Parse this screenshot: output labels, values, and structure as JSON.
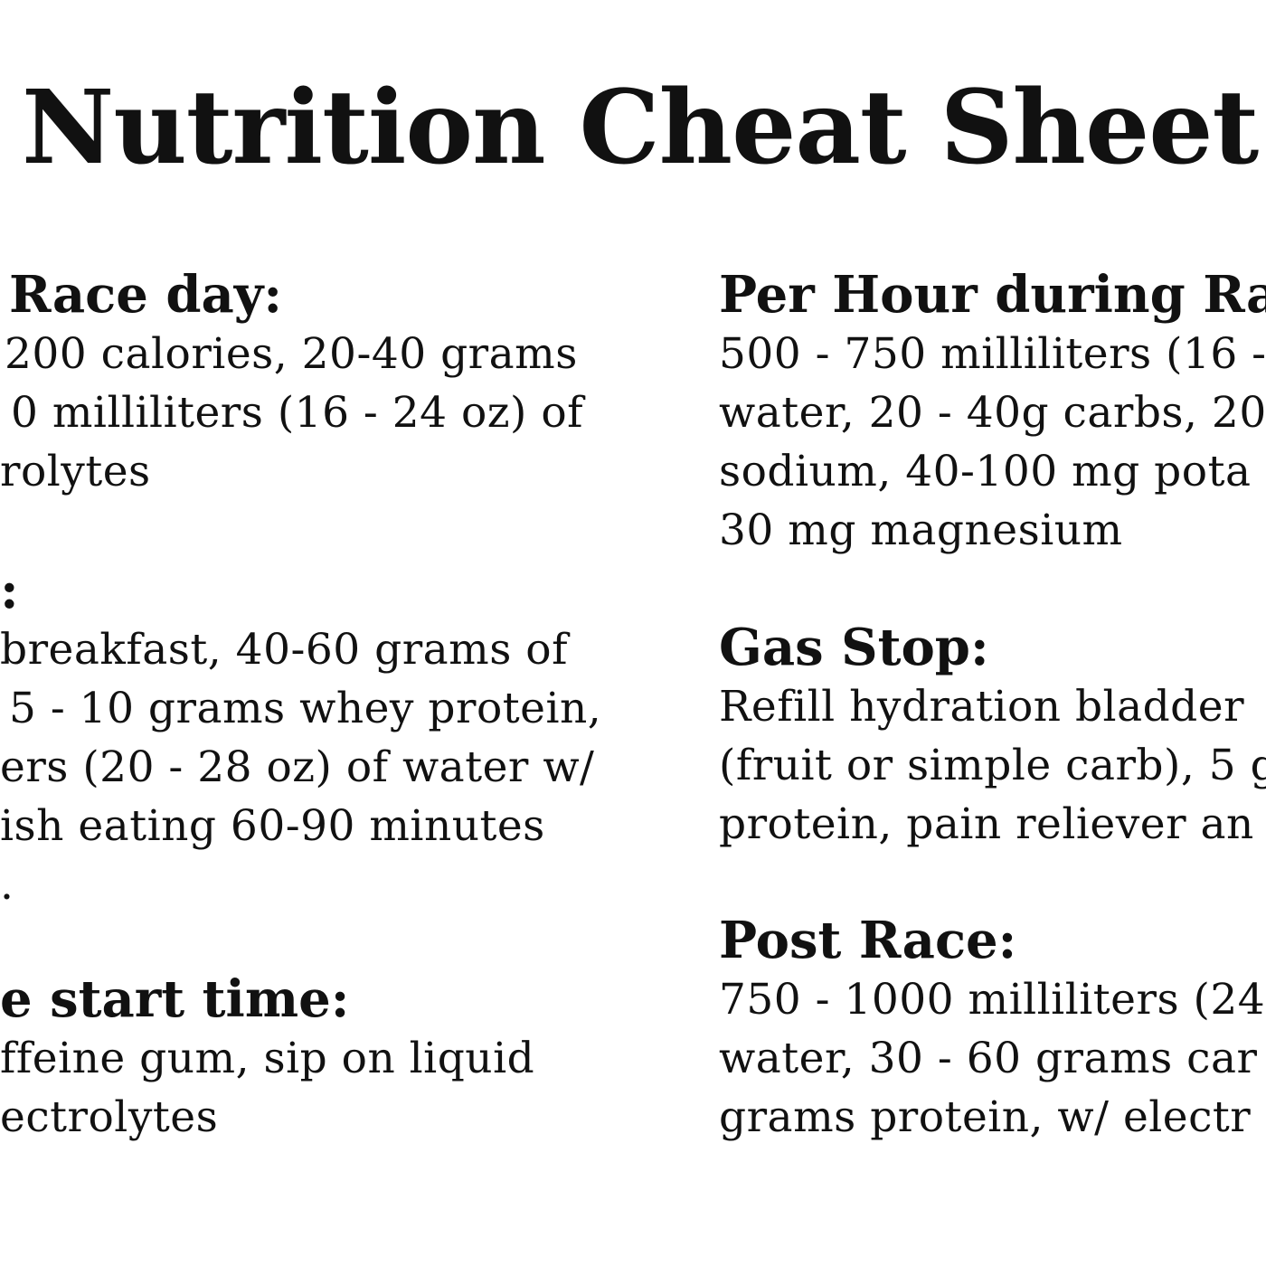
{
  "title": "Nutrition Cheat Sheet",
  "left_column": {
    "section1": {
      "heading": "Race day:",
      "lines": [
        "200 calories, 20-40 grams",
        "0 milliliters (16 - 24 oz) of",
        "rolytes"
      ]
    },
    "section2": {
      "heading": ":",
      "lines": [
        "breakfast, 40-60 grams of",
        "5 - 10 grams whey protein,",
        "ers (20 - 28 oz) of water w/",
        "ish eating 60-90 minutes",
        "."
      ]
    },
    "section3": {
      "heading": "e start time:",
      "lines": [
        "ffeine gum, sip on liquid",
        "ectrolytes"
      ]
    }
  },
  "right_column": {
    "section1": {
      "heading": "Per Hour during Rac",
      "lines": [
        "500 - 750 milliliters (16 -",
        "water, 20 - 40g carbs, 20",
        "sodium, 40-100 mg pota",
        "30 mg magnesium"
      ]
    },
    "section2": {
      "heading": "Gas Stop:",
      "lines": [
        "Refill hydration bladder",
        "(fruit or simple carb), 5 g",
        "protein, pain reliever an"
      ]
    },
    "section3": {
      "heading": "Post Race:",
      "lines": [
        "750 - 1000 milliliters (24",
        "water, 30 - 60 grams car",
        "grams protein, w/ electr"
      ]
    }
  }
}
